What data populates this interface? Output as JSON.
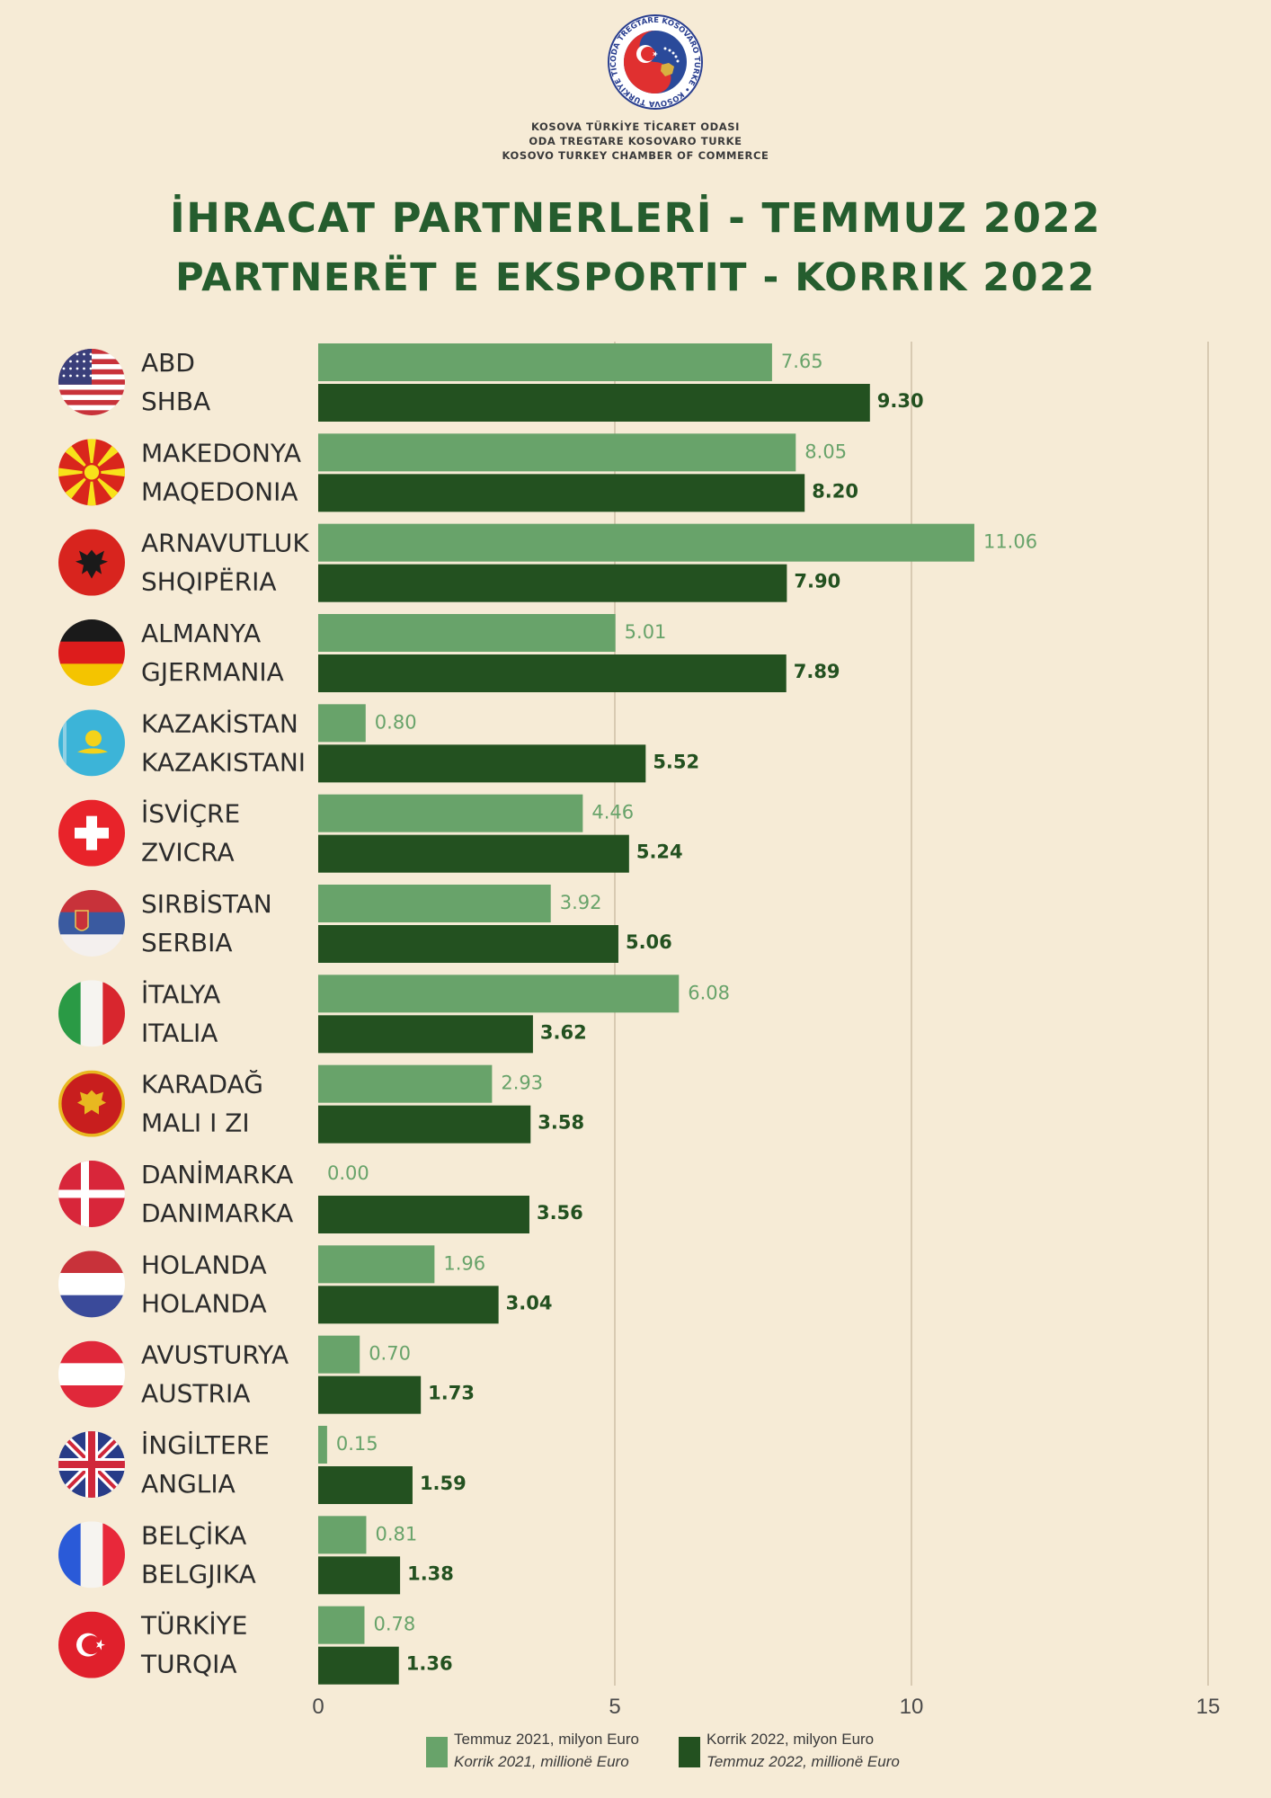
{
  "header": {
    "org_lines": [
      "KOSOVA TÜRKİYE TİCARET ODASI",
      "ODA TREGTARE KOSOVARO TURKE",
      "KOSOVO TURKEY CHAMBER OF COMMERCE"
    ],
    "logo_ring_text": "ODA TREGTARE KOSOVARO TURKE • KOSOVA TÜRKİYE TİCARET ODASI",
    "title_line1": "İHRACAT PARTNERLERİ - TEMMUZ 2022",
    "title_line2": "PARTNERËT E EKSPORTIT - KORRIK 2022"
  },
  "colors": {
    "background": "#f6ebd6",
    "series_2021": "#68a36a",
    "series_2022": "#235120",
    "title": "#255d2e"
  },
  "chart_data": {
    "type": "bar",
    "orientation": "horizontal",
    "categories": [
      {
        "line1": "ABD",
        "line2": "SHBA",
        "flag": "usa-flag-icon"
      },
      {
        "line1": "MAKEDONYA",
        "line2": "MAQEDONIA",
        "flag": "north-macedonia-flag-icon"
      },
      {
        "line1": "ARNAVUTLUK",
        "line2": "SHQIPËRIA",
        "flag": "albania-flag-icon"
      },
      {
        "line1": "ALMANYA",
        "line2": "GJERMANIA",
        "flag": "germany-flag-icon"
      },
      {
        "line1": "KAZAKİSTAN",
        "line2": "KAZAKISTANI",
        "flag": "kazakhstan-flag-icon"
      },
      {
        "line1": "İSVİÇRE",
        "line2": "ZVICRA",
        "flag": "switzerland-flag-icon"
      },
      {
        "line1": "SIRBİSTAN",
        "line2": "SERBIA",
        "flag": "serbia-flag-icon"
      },
      {
        "line1": "İTALYA",
        "line2": "ITALIA",
        "flag": "italy-flag-icon"
      },
      {
        "line1": "KARADAĞ",
        "line2": "MALI I ZI",
        "flag": "montenegro-flag-icon"
      },
      {
        "line1": "DANİMARKA",
        "line2": "DANIMARKA",
        "flag": "denmark-flag-icon"
      },
      {
        "line1": "HOLANDA",
        "line2": "HOLANDA",
        "flag": "netherlands-flag-icon"
      },
      {
        "line1": "AVUSTURYA",
        "line2": "AUSTRIA",
        "flag": "austria-flag-icon"
      },
      {
        "line1": "İNGİLTERE",
        "line2": "ANGLIA",
        "flag": "uk-flag-icon"
      },
      {
        "line1": "BELÇİKA",
        "line2": "BELGJIKA",
        "flag": "france-flag-icon"
      },
      {
        "line1": "TÜRKİYE",
        "line2": "TURQIA",
        "flag": "turkey-flag-icon"
      }
    ],
    "series": [
      {
        "name_line1": "Temmuz  2021, milyon Euro",
        "name_line2": "Korrik 2021, millionë Euro",
        "color": "#68a36a",
        "values": [
          7.65,
          8.05,
          11.06,
          5.01,
          0.8,
          4.46,
          3.92,
          6.08,
          2.93,
          0.0,
          1.96,
          0.7,
          0.15,
          0.81,
          0.78
        ],
        "labels": [
          "7.65",
          "8.05",
          "11.06",
          "5.01",
          "0.80",
          "4.46",
          "3.92",
          "6.08",
          "2.93",
          "0.00",
          "1.96",
          "0.70",
          "0.15",
          "0.81",
          "0.78"
        ]
      },
      {
        "name_line1": "Korrik 2022, milyon Euro",
        "name_line2": "Temmuz 2022, millionë Euro",
        "color": "#235120",
        "values": [
          9.3,
          8.2,
          7.9,
          7.89,
          5.52,
          5.24,
          5.06,
          3.62,
          3.58,
          3.56,
          3.04,
          1.73,
          1.59,
          1.38,
          1.36
        ],
        "labels": [
          "9.30",
          "8.20",
          "7.90",
          "7.89",
          "5.52",
          "5.24",
          "5.06",
          "3.62",
          "3.58",
          "3.56",
          "3.04",
          "1.73",
          "1.59",
          "1.38",
          "1.36"
        ]
      }
    ],
    "xlim": [
      0,
      15
    ],
    "xticks": [
      0,
      5,
      10,
      15
    ],
    "grid": "vertical"
  }
}
